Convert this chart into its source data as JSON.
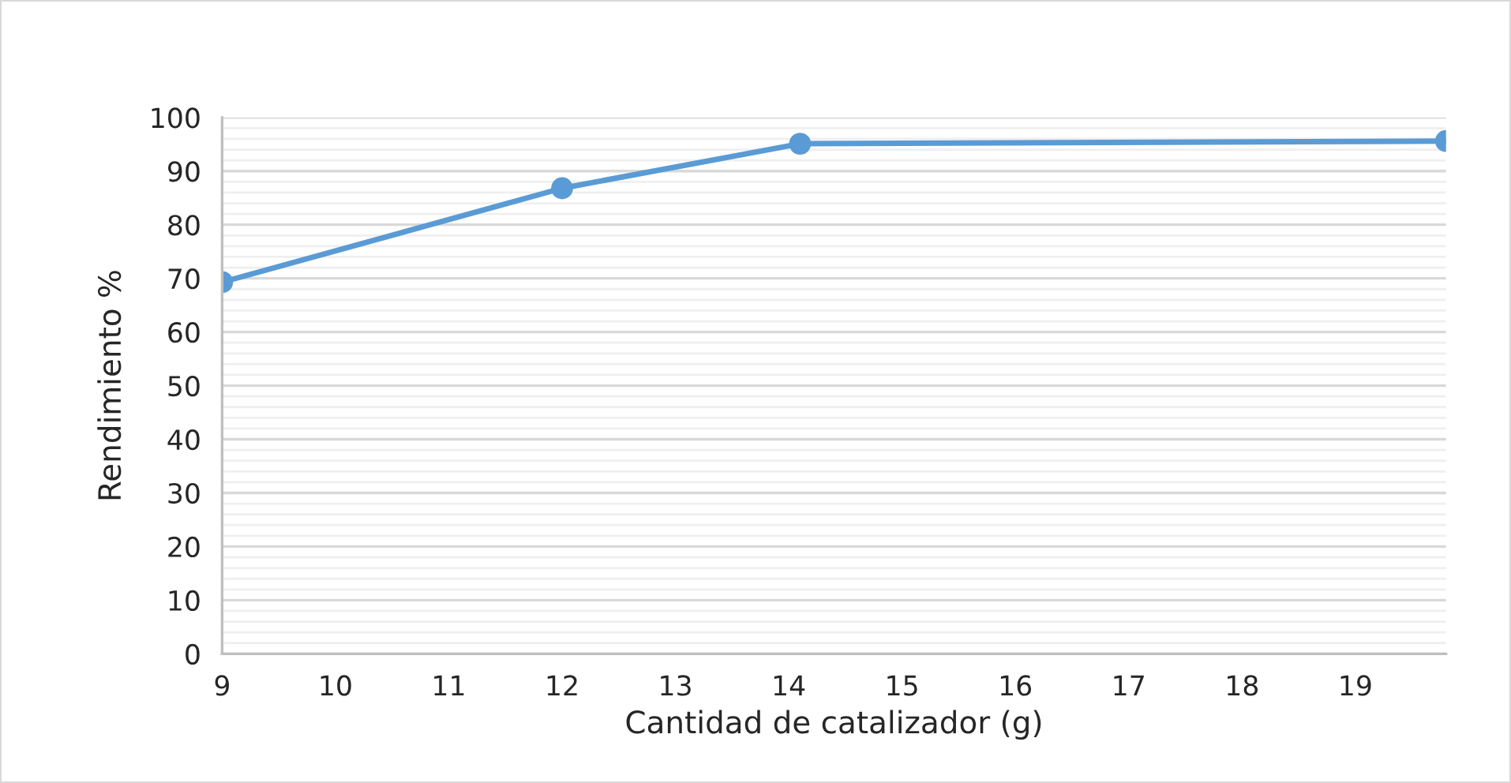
{
  "chart_data": {
    "type": "line",
    "xlabel": "Cantidad de catalizador (g)",
    "ylabel": "Rendimiento %",
    "x": [
      9,
      12,
      14.1,
      19.8
    ],
    "series": [
      {
        "color": "#5b9bd5",
        "values": [
          69.3,
          86.8,
          95.1,
          95.6
        ]
      }
    ],
    "xlim": [
      9,
      19.8
    ],
    "xticks": [
      9,
      10,
      11,
      12,
      13,
      14,
      15,
      16,
      17,
      18,
      19
    ],
    "ylim": [
      0,
      100
    ],
    "yticks": [
      0,
      10,
      20,
      30,
      40,
      50,
      60,
      70,
      80,
      90,
      100
    ],
    "grid": "y",
    "marker": "circle",
    "line_style": "solid"
  }
}
